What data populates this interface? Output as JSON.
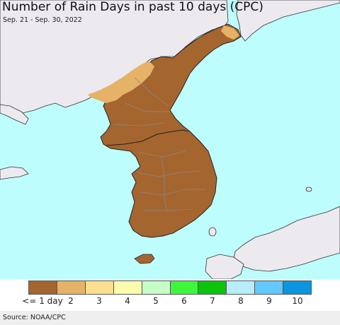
{
  "header": {
    "title": "Number of Rain Days in past 10 days (CPC)",
    "date_range": "Sep. 21 - Sep. 30, 2022"
  },
  "colors": {
    "sea": "#bdfdfd",
    "foreign_land": "#ece9ef",
    "korea_main": "#a5652f",
    "korea_light": "#e5b267"
  },
  "legend": {
    "categories": [
      {
        "label": "<= 1 day",
        "color": "#a5652f"
      },
      {
        "label": "2",
        "color": "#e5b267"
      },
      {
        "label": "3",
        "color": "#fde08f"
      },
      {
        "label": "4",
        "color": "#fdfdae"
      },
      {
        "label": "5",
        "color": "#c6fec6"
      },
      {
        "label": "6",
        "color": "#3df73d"
      },
      {
        "label": "7",
        "color": "#0bc40b"
      },
      {
        "label": "8",
        "color": "#b7edfd"
      },
      {
        "label": "9",
        "color": "#63c8fd"
      },
      {
        "label": "10",
        "color": "#0b94e0"
      }
    ]
  },
  "footer": {
    "source": "Source: NOAA/CPC"
  }
}
